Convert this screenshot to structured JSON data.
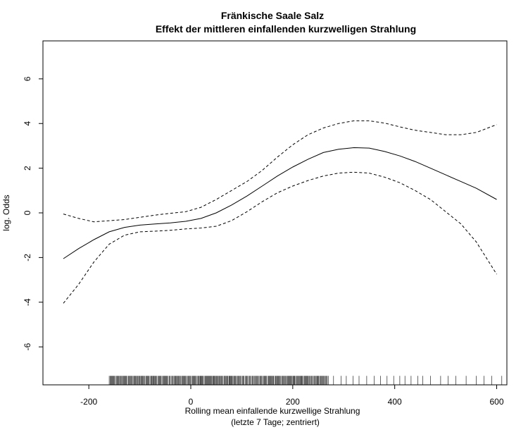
{
  "chart_data": {
    "type": "line",
    "title": "Fränkische Saale Salz",
    "subtitle": "Effekt der mittleren einfallenden kurzwelligen Strahlung",
    "xlabel": "Rolling mean einfallende kurzwellige Strahlung",
    "xlabel_sub": "(letzte 7 Tage; zentriert)",
    "ylabel": "log. Odds",
    "xlim": [
      -290,
      620
    ],
    "ylim": [
      -7.7,
      7.7
    ],
    "x_ticks": [
      -200,
      0,
      200,
      400,
      600
    ],
    "x_tick_labels": [
      "-200",
      "0",
      "200",
      "400",
      "600"
    ],
    "y_ticks": [
      -6,
      -4,
      -2,
      0,
      2,
      4,
      6
    ],
    "y_tick_labels": [
      "-6",
      "-4",
      "-2",
      "0",
      "2",
      "4",
      "6"
    ],
    "grid": false,
    "legend": "none",
    "line_color": "#000000",
    "series": [
      {
        "style": "solid",
        "x": [
          -250,
          -220,
          -190,
          -160,
          -130,
          -100,
          -70,
          -40,
          -10,
          20,
          50,
          80,
          110,
          140,
          170,
          200,
          230,
          260,
          290,
          320,
          350,
          380,
          410,
          440,
          470,
          500,
          530,
          560,
          600
        ],
        "y": [
          -2.05,
          -1.6,
          -1.2,
          -0.85,
          -0.65,
          -0.55,
          -0.5,
          -0.45,
          -0.38,
          -0.25,
          0.0,
          0.35,
          0.75,
          1.2,
          1.65,
          2.05,
          2.4,
          2.7,
          2.85,
          2.92,
          2.9,
          2.75,
          2.55,
          2.3,
          2.0,
          1.7,
          1.4,
          1.1,
          0.6
        ]
      },
      {
        "style": "dashed",
        "x": [
          -250,
          -220,
          -190,
          -160,
          -130,
          -100,
          -70,
          -40,
          -10,
          20,
          50,
          80,
          110,
          140,
          170,
          200,
          230,
          260,
          290,
          320,
          350,
          380,
          410,
          440,
          470,
          500,
          530,
          560,
          600
        ],
        "y": [
          -0.05,
          -0.25,
          -0.4,
          -0.35,
          -0.3,
          -0.2,
          -0.1,
          -0.02,
          0.05,
          0.25,
          0.6,
          1.0,
          1.4,
          1.9,
          2.5,
          3.05,
          3.5,
          3.8,
          4.0,
          4.12,
          4.12,
          4.02,
          3.85,
          3.7,
          3.6,
          3.5,
          3.5,
          3.6,
          3.95
        ]
      },
      {
        "style": "dashed",
        "x": [
          -250,
          -220,
          -190,
          -160,
          -130,
          -100,
          -70,
          -40,
          -10,
          20,
          50,
          80,
          110,
          140,
          170,
          200,
          230,
          260,
          290,
          320,
          350,
          380,
          410,
          440,
          470,
          500,
          530,
          560,
          600
        ],
        "y": [
          -4.05,
          -3.2,
          -2.2,
          -1.4,
          -1.0,
          -0.85,
          -0.82,
          -0.78,
          -0.72,
          -0.68,
          -0.6,
          -0.35,
          0.05,
          0.5,
          0.9,
          1.2,
          1.45,
          1.65,
          1.78,
          1.82,
          1.78,
          1.6,
          1.35,
          1.0,
          0.6,
          0.05,
          -0.5,
          -1.3,
          -2.75
        ]
      }
    ],
    "rug": {
      "x_min": -160,
      "dense_until": 270,
      "x_max": 610,
      "sparse": [
        280,
        295,
        305,
        318,
        330,
        345,
        360,
        372,
        385,
        398,
        410,
        420,
        432,
        445,
        455,
        470,
        490,
        505,
        520,
        540,
        560,
        575,
        590,
        610
      ]
    }
  }
}
